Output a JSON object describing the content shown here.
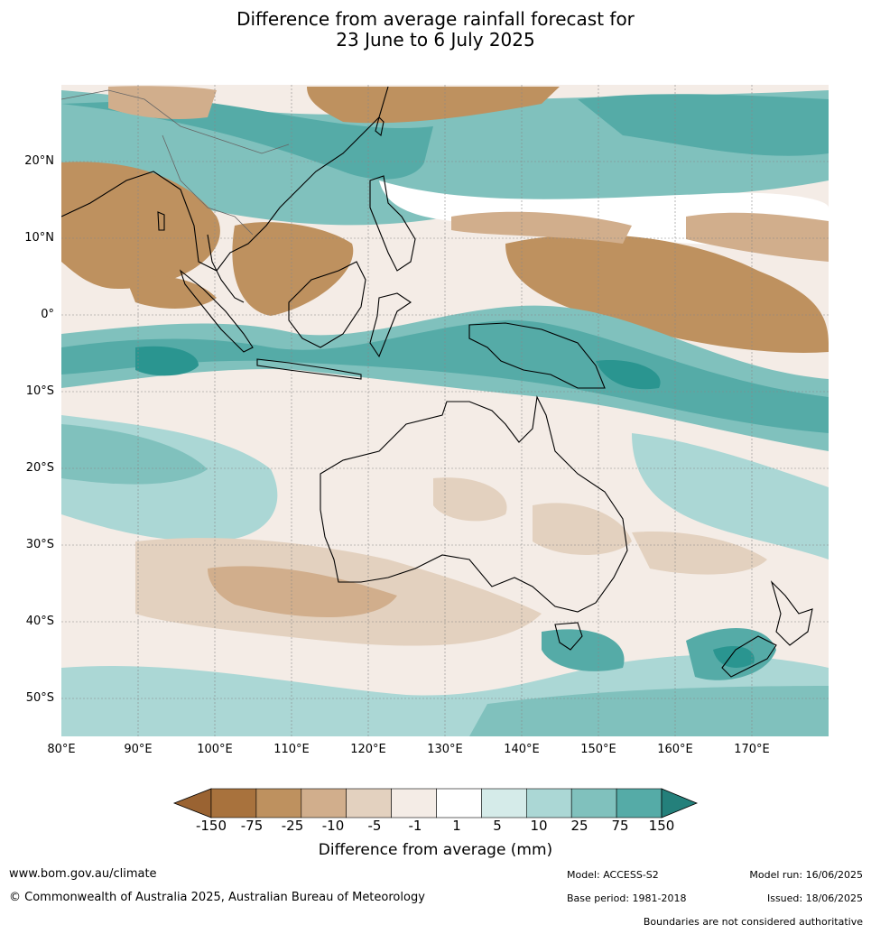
{
  "title": {
    "line1": "Difference from average rainfall forecast for",
    "line2": "23 June to 6 July 2025"
  },
  "axes": {
    "lat_labels": [
      "20°N",
      "10°N",
      "0°",
      "10°S",
      "20°S",
      "30°S",
      "40°S",
      "50°S"
    ],
    "lon_labels": [
      "80°E",
      "90°E",
      "100°E",
      "110°E",
      "120°E",
      "130°E",
      "140°E",
      "150°E",
      "160°E",
      "170°E"
    ]
  },
  "colorbar": {
    "title": "Difference from average (mm)",
    "tick_labels": [
      "-150",
      "-75",
      "-25",
      "-10",
      "-5",
      "-1",
      "1",
      "5",
      "10",
      "25",
      "75",
      "150"
    ],
    "colors": [
      "#a8723d",
      "#be915f",
      "#d1ae8c",
      "#e3d1bf",
      "#f4ece6",
      "#ffffff",
      "#d5ebe9",
      "#abd7d5",
      "#80c1bd",
      "#55aba7",
      "#2a9590",
      "#24807b"
    ]
  },
  "footer": {
    "website": "www.bom.gov.au/climate",
    "copyright": "© Commonwealth of Australia 2025, Australian Bureau of Meteorology",
    "model": "Model: ACCESS-S2",
    "base_period": "Base period: 1981-2018",
    "model_run": "Model run: 16/06/2025",
    "issued": "Issued: 18/06/2025",
    "disclaimer": "Boundaries are not considered authoritative"
  }
}
